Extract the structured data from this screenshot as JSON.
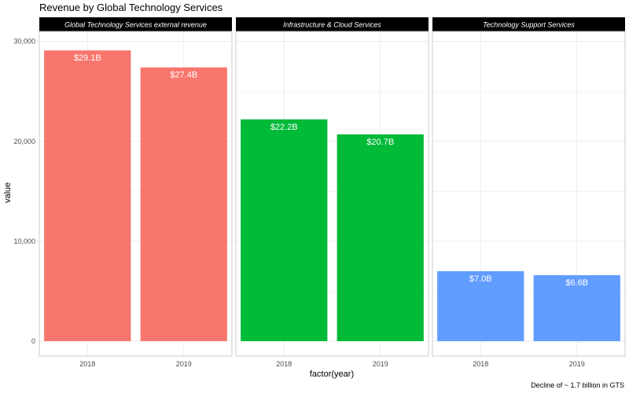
{
  "chart_data": {
    "type": "bar",
    "title": "Revenue by Global Technology Services",
    "xlabel": "factor(year)",
    "ylabel": "value",
    "caption": "Decline of ~ 1.7 billion in GTS",
    "ylim": [
      -1500,
      31000
    ],
    "yticks": [
      0,
      10000,
      20000,
      30000
    ],
    "ytick_labels": [
      "0",
      "10,000",
      "20,000",
      "30,000"
    ],
    "grid": true,
    "legend": "none",
    "panels": [
      {
        "label": "Global Technology Services external revenue",
        "color": "#F8766D",
        "categories": [
          "2018",
          "2019"
        ],
        "values": [
          29100,
          27400
        ],
        "data_labels": [
          "$29.1B",
          "$27.4B"
        ]
      },
      {
        "label": "Infrastructure & Cloud Services",
        "color": "#00BA38",
        "categories": [
          "2018",
          "2019"
        ],
        "values": [
          22200,
          20700
        ],
        "data_labels": [
          "$22.2B",
          "$20.7B"
        ]
      },
      {
        "label": "Technology Support Services",
        "color": "#619CFF",
        "categories": [
          "2018",
          "2019"
        ],
        "values": [
          7000,
          6600
        ],
        "data_labels": [
          "$7.0B",
          "$6.6B"
        ]
      }
    ]
  }
}
